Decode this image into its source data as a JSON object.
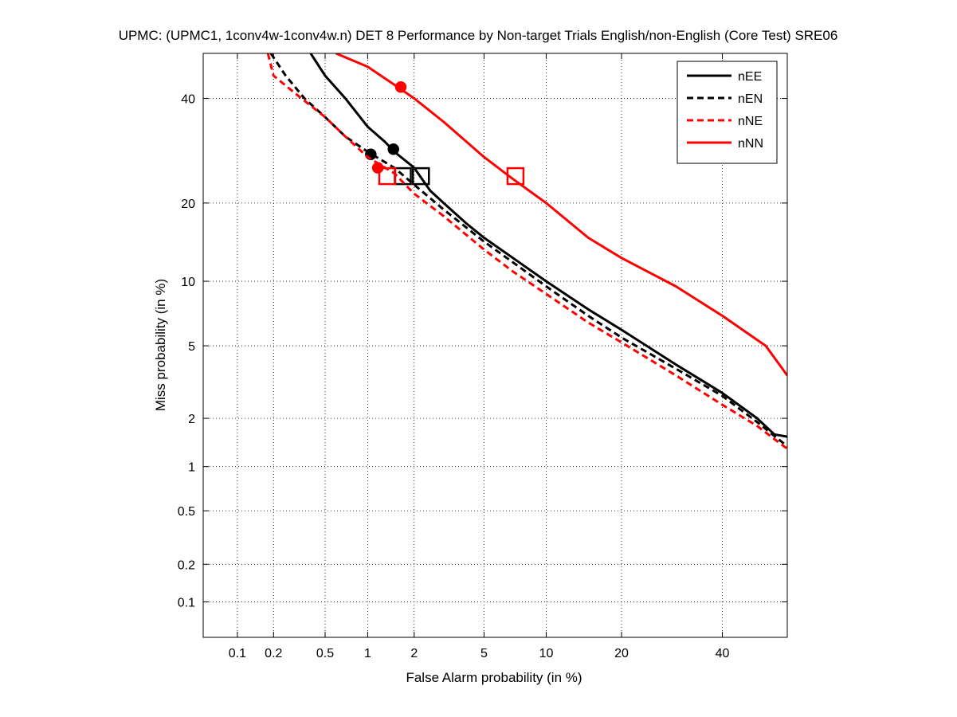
{
  "chart_data": {
    "type": "line",
    "title": "UPMC: (UPMC1, 1conv4w-1conv4w.n) DET 8 Performance by Non-target Trials English/non-English (Core Test) SRE06",
    "xlabel": "False Alarm probability (in %)",
    "ylabel": "Miss probability (in %)",
    "xscale": "probit",
    "yscale": "probit",
    "xlim": [
      0.05,
      55
    ],
    "ylim": [
      0.05,
      50
    ],
    "xticks": [
      0.1,
      0.2,
      0.5,
      1,
      2,
      5,
      10,
      20,
      40
    ],
    "xtick_labels": [
      "0.1",
      "0.2",
      "0.5",
      "1",
      "2",
      "5",
      "10",
      "20",
      "40"
    ],
    "yticks": [
      0.1,
      0.2,
      0.5,
      1,
      2,
      5,
      10,
      20,
      40
    ],
    "ytick_labels": [
      "0.1",
      "0.2",
      "0.5",
      "1",
      "2",
      "5",
      "10",
      "20",
      "40"
    ],
    "grid": true,
    "legend_position": "top-right",
    "series": [
      {
        "name": "nEE",
        "color": "#000000",
        "dash": "solid",
        "points": [
          [
            0.39,
            50
          ],
          [
            0.5,
            45
          ],
          [
            0.7,
            40
          ],
          [
            1.0,
            34
          ],
          [
            1.3,
            31
          ],
          [
            1.5,
            29
          ],
          [
            2.0,
            26
          ],
          [
            2.5,
            22
          ],
          [
            3.0,
            20
          ],
          [
            4.0,
            17
          ],
          [
            5.0,
            15
          ],
          [
            7.0,
            12.5
          ],
          [
            10.0,
            10
          ],
          [
            15.0,
            7.5
          ],
          [
            20.0,
            6
          ],
          [
            30.0,
            4
          ],
          [
            40.0,
            2.8
          ],
          [
            48.0,
            2
          ],
          [
            52.0,
            1.6
          ],
          [
            55.0,
            1.55
          ]
        ],
        "min_dcf_point": [
          1.48,
          29.5
        ],
        "actual_dcf_point": [
          2.2,
          24.5
        ]
      },
      {
        "name": "nEN",
        "color": "#000000",
        "dash": "dashed",
        "points": [
          [
            0.19,
            50
          ],
          [
            0.25,
            45
          ],
          [
            0.35,
            40
          ],
          [
            0.5,
            36
          ],
          [
            0.7,
            32
          ],
          [
            1.0,
            29
          ],
          [
            1.5,
            26
          ],
          [
            2.0,
            23
          ],
          [
            3.0,
            19
          ],
          [
            5.0,
            14.5
          ],
          [
            7.0,
            12
          ],
          [
            10.0,
            9.5
          ],
          [
            15.0,
            7
          ],
          [
            20.0,
            5.5
          ],
          [
            30.0,
            3.8
          ],
          [
            40.0,
            2.7
          ],
          [
            48.0,
            1.9
          ],
          [
            55.0,
            1.35
          ]
        ],
        "min_dcf_point": [
          1.05,
          28.5
        ],
        "actual_dcf_point": [
          1.7,
          24.5
        ]
      },
      {
        "name": "nNE",
        "color": "#ff0000",
        "dash": "dashed",
        "points": [
          [
            0.18,
            50
          ],
          [
            0.2,
            45
          ],
          [
            0.3,
            41
          ],
          [
            0.5,
            36
          ],
          [
            0.7,
            32
          ],
          [
            1.0,
            28
          ],
          [
            1.5,
            25
          ],
          [
            2.0,
            21.5
          ],
          [
            3.0,
            18
          ],
          [
            5.0,
            13.5
          ],
          [
            7.0,
            11
          ],
          [
            10.0,
            8.8
          ],
          [
            15.0,
            6.5
          ],
          [
            20.0,
            5.2
          ],
          [
            30.0,
            3.5
          ],
          [
            40.0,
            2.4
          ],
          [
            48.0,
            1.8
          ],
          [
            55.0,
            1.3
          ]
        ],
        "min_dcf_point": [
          1.17,
          26
        ],
        "actual_dcf_point": [
          1.35,
          24.5
        ]
      },
      {
        "name": "nNN",
        "color": "#ff0000",
        "dash": "solid",
        "points": [
          [
            0.6,
            50
          ],
          [
            1.0,
            47
          ],
          [
            1.5,
            43
          ],
          [
            2.0,
            40
          ],
          [
            3.0,
            35
          ],
          [
            5.0,
            28
          ],
          [
            7.0,
            24
          ],
          [
            10.0,
            20
          ],
          [
            15.0,
            15
          ],
          [
            20.0,
            12.5
          ],
          [
            30.0,
            9.5
          ],
          [
            40.0,
            7
          ],
          [
            50.0,
            5
          ],
          [
            55.0,
            3.5
          ]
        ],
        "min_dcf_point": [
          1.65,
          42.5
        ],
        "actual_dcf_point": [
          7.2,
          24.5
        ]
      }
    ]
  }
}
